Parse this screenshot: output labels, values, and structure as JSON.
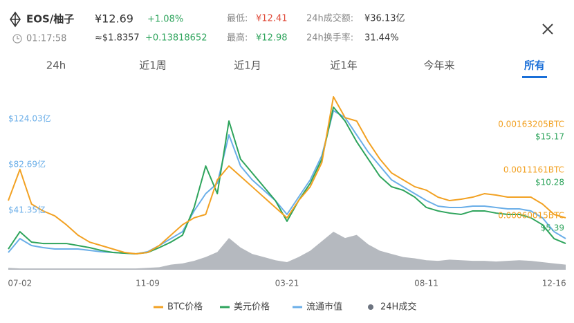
{
  "header": {
    "symbol": "EOS/柚子",
    "price": "¥12.69",
    "change": "+1.08%",
    "time": "01:17:58",
    "usd_price": "≈$1.8357",
    "usd_change": "+0.13818652",
    "low_label": "最低:",
    "low": "¥12.41",
    "high_label": "最高:",
    "high": "¥12.98",
    "volume_label": "24h成交额:",
    "volume": "¥36.13亿",
    "turnover_label": "24h换手率:",
    "turnover": "31.44%"
  },
  "tabs": {
    "items": [
      "24h",
      "近1周",
      "近1月",
      "近1年",
      "今年来",
      "所有"
    ],
    "active": 5
  },
  "chart_data": {
    "type": "line",
    "categories": [
      null,
      "07-02",
      null,
      null,
      null,
      null,
      null,
      null,
      null,
      null,
      null,
      null,
      "11-09",
      null,
      null,
      null,
      null,
      null,
      null,
      null,
      null,
      null,
      null,
      null,
      "03-21",
      null,
      null,
      null,
      null,
      null,
      null,
      null,
      null,
      null,
      null,
      null,
      "08-11",
      null,
      null,
      null,
      null,
      null,
      null,
      null,
      null,
      null,
      null,
      "12-16",
      null
    ],
    "ylim": [
      -7.51,
      155.35
    ],
    "yticks": [
      {
        "value": 124.03,
        "label": "$124.03亿"
      },
      {
        "value": 82.69,
        "label": "$82.69亿"
      },
      {
        "value": 41.35,
        "label": "$41.35亿"
      }
    ],
    "y2lim": [
      0.87,
      20.13
    ],
    "y2ticks": [
      {
        "value": 15.17,
        "label": "$15.17"
      },
      {
        "value": 10.28,
        "label": "$10.28"
      },
      {
        "value": 5.39,
        "label": "$5.39"
      }
    ],
    "y3lim": [
      -9.5e-06,
      0.0020229
    ],
    "y3ticks": [
      {
        "value": 0.00163205,
        "label": "0.00163205BTC"
      },
      {
        "value": 0.0011161,
        "label": "0.0011161BTC"
      },
      {
        "value": 0.00060015,
        "label": "0.00060015BTC"
      }
    ],
    "series": [
      {
        "name": "BTC价格",
        "color": "#f2a122",
        "axis": "y3",
        "values": [
          0.000772,
          0.001124,
          0.000733,
          0.000655,
          0.0006,
          0.000499,
          0.000381,
          0.000303,
          0.000264,
          0.000225,
          0.000186,
          0.00017,
          0.000186,
          0.000264,
          0.000381,
          0.000499,
          0.000577,
          0.000616,
          0.001007,
          0.001163,
          0.001046,
          0.000929,
          0.000811,
          0.000694,
          0.000577,
          0.000772,
          0.000929,
          0.001202,
          0.001945,
          0.00171,
          0.001671,
          0.001437,
          0.001241,
          0.001085,
          0.001007,
          0.000929,
          0.00089,
          0.000811,
          0.000772,
          0.000788,
          0.000811,
          0.00085,
          0.000835,
          0.000811,
          0.000811,
          0.000811,
          0.000733,
          0.000616,
          0.000577
        ]
      },
      {
        "name": "美元价格",
        "color": "#2ea45c",
        "axis": "y2",
        "values": [
          3.09,
          4.94,
          3.83,
          3.68,
          3.68,
          3.68,
          3.46,
          3.24,
          2.94,
          2.72,
          2.65,
          2.57,
          2.72,
          3.24,
          3.83,
          4.57,
          7.54,
          11.98,
          9.02,
          16.8,
          12.72,
          11.24,
          9.76,
          8.28,
          6.06,
          8.28,
          10.13,
          12.72,
          18.28,
          16.8,
          14.58,
          12.72,
          10.87,
          9.76,
          9.39,
          8.65,
          7.54,
          7.17,
          6.94,
          6.8,
          7.17,
          7.17,
          6.94,
          6.8,
          6.8,
          6.43,
          5.69,
          4.2,
          3.68
        ]
      },
      {
        "name": "流通市值",
        "color": "#6aaee8",
        "axis": "y",
        "values": [
          8.15,
          20.67,
          14.41,
          12.53,
          11.28,
          11.28,
          11.28,
          10.03,
          8.77,
          8.15,
          7.52,
          6.89,
          8.77,
          14.41,
          20.67,
          26.94,
          45.73,
          61.39,
          70.79,
          114.63,
          86.45,
          73.92,
          64.52,
          55.13,
          42.6,
          58.26,
          73.92,
          95.84,
          136.56,
          130.29,
          114.63,
          98.97,
          86.45,
          73.92,
          67.65,
          61.39,
          55.13,
          50.11,
          48.86,
          48.86,
          50.11,
          50.11,
          48.86,
          47.61,
          47.61,
          45.73,
          39.47,
          26.94,
          20.67
        ]
      },
      {
        "name": "24H成交",
        "color": "#a8adb4",
        "style": "area",
        "values": [
          3,
          2,
          2,
          2,
          2,
          2,
          2,
          2,
          2,
          2,
          2,
          2,
          3,
          4,
          8,
          10,
          14,
          20,
          28,
          50,
          35,
          25,
          20,
          15,
          12,
          20,
          30,
          45,
          60,
          50,
          55,
          40,
          30,
          25,
          20,
          18,
          15,
          14,
          16,
          15,
          14,
          14,
          13,
          14,
          15,
          14,
          12,
          10,
          8
        ]
      }
    ]
  }
}
